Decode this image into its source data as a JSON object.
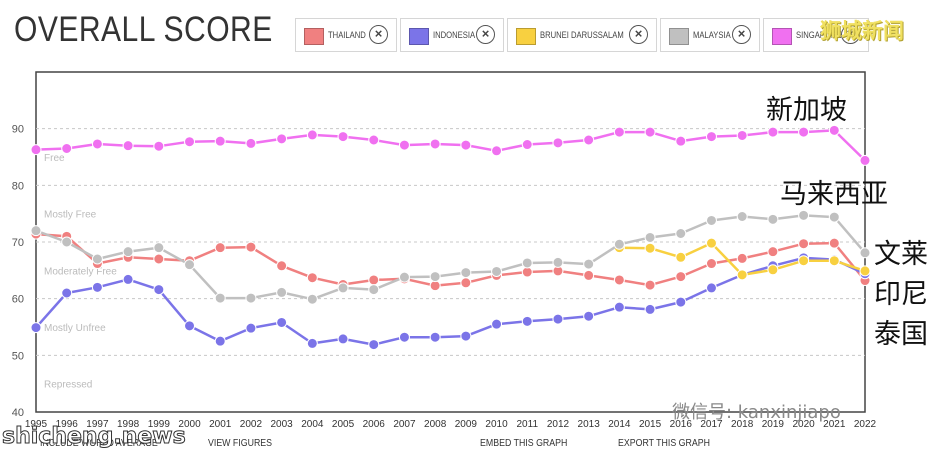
{
  "header": {
    "title": "OVERALL SCORE"
  },
  "legend": [
    {
      "name": "THAILAND",
      "color": "#f08080"
    },
    {
      "name": "INDONESIA",
      "color": "#7b74e8"
    },
    {
      "name": "BRUNEI DARUSSALAM",
      "color": "#f8d040"
    },
    {
      "name": "MALAYSIA",
      "color": "#c0c0c0"
    },
    {
      "name": "SINGAPORE",
      "color": "#f070f0"
    }
  ],
  "close_glyph": "×",
  "annotations": {
    "singapore": "新加坡",
    "malaysia": "马来西亚",
    "brunei": "文莱",
    "indonesia": "印尼",
    "thailand": "泰国"
  },
  "watermarks": {
    "top": "狮城新闻",
    "wechat": "微信号: kanxinjiapo",
    "shicheng": "shicheng.news"
  },
  "footer_links": {
    "world_average": "INCLUDE WORLD AVERAGE",
    "view_figures": "VIEW FIGURES",
    "embed": "EMBED THIS GRAPH",
    "export": "EXPORT THIS GRAPH"
  },
  "chart_data": {
    "type": "line",
    "title": "OVERALL SCORE",
    "x": [
      1995,
      1996,
      1997,
      1998,
      1999,
      2000,
      2001,
      2002,
      2003,
      2004,
      2005,
      2006,
      2007,
      2008,
      2009,
      2010,
      2011,
      2012,
      2013,
      2014,
      2015,
      2016,
      2017,
      2018,
      2019,
      2020,
      2021,
      2022
    ],
    "x_tick_labels": [
      "1995",
      "1996",
      "1997",
      "1998",
      "1999",
      "2000",
      "2001",
      "2002",
      "2003",
      "2004",
      "2005",
      "2006",
      "2007",
      "2008",
      "2009",
      "2010",
      "2011",
      "2012",
      "2013",
      "2014",
      "2015",
      "2016",
      "2017",
      "2018",
      "2019",
      "2020",
      "2021",
      "2022"
    ],
    "ylim": [
      40,
      100
    ],
    "y_ticks": [
      40,
      50,
      60,
      70,
      80,
      90
    ],
    "bands": [
      {
        "label": "Free",
        "threshold": 80
      },
      {
        "label": "Mostly Free",
        "threshold": 70
      },
      {
        "label": "Moderately Free",
        "threshold": 60
      },
      {
        "label": "Mostly Unfree",
        "threshold": 50
      },
      {
        "label": "Repressed",
        "threshold": 40
      }
    ],
    "series": [
      {
        "name": "THAILAND",
        "color": "#f08080",
        "values": [
          71.4,
          71.0,
          66.2,
          67.3,
          67.0,
          66.7,
          69.0,
          69.1,
          65.8,
          63.7,
          62.5,
          63.3,
          63.5,
          62.3,
          62.8,
          64.1,
          64.7,
          64.9,
          64.1,
          63.3,
          62.4,
          63.9,
          66.2,
          67.1,
          68.3,
          69.7,
          69.8,
          63.2
        ]
      },
      {
        "name": "INDONESIA",
        "color": "#7b74e8",
        "values": [
          54.9,
          61.0,
          62.0,
          63.4,
          61.6,
          55.2,
          52.5,
          54.8,
          55.8,
          52.1,
          52.9,
          51.9,
          53.2,
          53.2,
          53.4,
          55.5,
          56.0,
          56.4,
          56.9,
          58.5,
          58.1,
          59.4,
          61.9,
          64.2,
          65.8,
          67.2,
          66.9,
          64.4
        ]
      },
      {
        "name": "BRUNEI DARUSSALAM",
        "color": "#f8d040",
        "values": [
          null,
          null,
          null,
          null,
          null,
          null,
          null,
          null,
          null,
          null,
          null,
          null,
          null,
          null,
          null,
          null,
          null,
          null,
          null,
          69.0,
          68.9,
          67.3,
          69.8,
          64.2,
          65.1,
          66.7,
          66.7,
          64.9
        ]
      },
      {
        "name": "MALAYSIA",
        "color": "#c0c0c0",
        "values": [
          72.0,
          70.0,
          67.0,
          68.3,
          69.0,
          66.0,
          60.1,
          60.1,
          61.1,
          59.9,
          61.9,
          61.6,
          63.8,
          63.9,
          64.6,
          64.8,
          66.3,
          66.4,
          66.1,
          69.6,
          70.8,
          71.5,
          73.8,
          74.5,
          74.0,
          74.7,
          74.4,
          68.1
        ]
      },
      {
        "name": "SINGAPORE",
        "color": "#f070f0",
        "values": [
          86.3,
          86.5,
          87.3,
          87.0,
          86.9,
          87.7,
          87.8,
          87.4,
          88.2,
          88.9,
          88.6,
          88.0,
          87.1,
          87.3,
          87.1,
          86.1,
          87.2,
          87.5,
          88.0,
          89.4,
          89.4,
          87.8,
          88.6,
          88.8,
          89.4,
          89.4,
          89.7,
          84.4
        ]
      }
    ]
  }
}
